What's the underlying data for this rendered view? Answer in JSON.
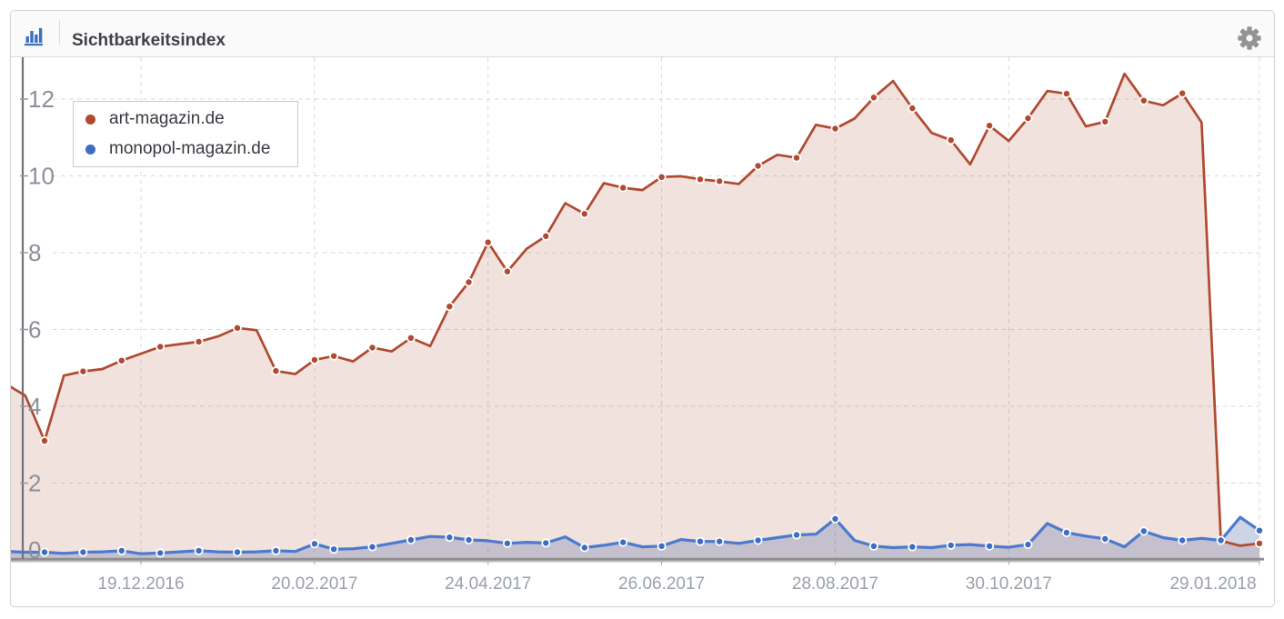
{
  "header": {
    "title": "Sichtbarkeitsindex",
    "chart_icon": "bar-chart-icon",
    "settings_icon": "gear-icon"
  },
  "legend": {
    "items": [
      {
        "label": "art-magazin.de",
        "color": "#b04a30"
      },
      {
        "label": "monopol-magazin.de",
        "color": "#3f6dc2"
      }
    ]
  },
  "chart_data": {
    "type": "line",
    "title": "Sichtbarkeitsindex",
    "ylim": [
      0,
      13.1
    ],
    "y_ticks": [
      0,
      2,
      4,
      6,
      8,
      10,
      12
    ],
    "grid": "dashed",
    "legend_position": "top-left",
    "x_tick_labels": [
      "19.12.2016",
      "20.02.2017",
      "24.04.2017",
      "26.06.2017",
      "28.08.2017",
      "30.10.2017",
      "29.01.2018"
    ],
    "x_tick_indices": [
      7,
      16,
      25,
      34,
      43,
      52,
      65
    ],
    "series": [
      {
        "name": "art-magazin.de",
        "color": "#b04a30",
        "fill": "rgba(176,74,48,0.16)",
        "values": [
          4.58,
          4.28,
          3.1,
          4.8,
          4.91,
          4.97,
          5.19,
          5.37,
          5.55,
          5.62,
          5.68,
          5.82,
          6.04,
          5.98,
          4.92,
          4.84,
          5.21,
          5.31,
          5.17,
          5.53,
          5.43,
          5.78,
          5.57,
          6.6,
          7.23,
          8.27,
          7.51,
          8.1,
          8.43,
          9.29,
          9.01,
          9.81,
          9.69,
          9.63,
          9.97,
          9.99,
          9.91,
          9.86,
          9.79,
          10.26,
          10.55,
          10.47,
          11.33,
          11.23,
          11.49,
          12.04,
          12.47,
          11.76,
          11.12,
          10.93,
          10.3,
          11.31,
          10.91,
          11.5,
          12.21,
          12.14,
          11.29,
          11.41,
          12.66,
          11.96,
          11.84,
          12.15,
          11.39,
          0.5,
          0.37,
          0.43
        ],
        "markers": [
          0,
          0,
          1,
          0,
          1,
          0,
          1,
          0,
          1,
          0,
          1,
          0,
          1,
          0,
          1,
          0,
          1,
          1,
          0,
          1,
          0,
          1,
          0,
          1,
          1,
          1,
          1,
          0,
          1,
          0,
          1,
          0,
          1,
          0,
          1,
          0,
          1,
          1,
          0,
          1,
          0,
          1,
          0,
          1,
          0,
          1,
          0,
          1,
          0,
          1,
          0,
          1,
          0,
          1,
          0,
          1,
          0,
          1,
          0,
          1,
          0,
          1,
          0,
          0,
          0,
          1
        ]
      },
      {
        "name": "monopol-magazin.de",
        "color": "#3f6dc2",
        "line_color": "#4c7ace",
        "fill": "rgba(90,113,168,0.30)",
        "values": [
          0.22,
          0.2,
          0.2,
          0.17,
          0.2,
          0.21,
          0.24,
          0.16,
          0.18,
          0.21,
          0.24,
          0.21,
          0.2,
          0.21,
          0.24,
          0.22,
          0.42,
          0.28,
          0.29,
          0.34,
          0.43,
          0.52,
          0.61,
          0.59,
          0.52,
          0.5,
          0.43,
          0.46,
          0.44,
          0.6,
          0.32,
          0.38,
          0.46,
          0.34,
          0.36,
          0.53,
          0.48,
          0.48,
          0.43,
          0.51,
          0.58,
          0.65,
          0.67,
          1.07,
          0.51,
          0.36,
          0.32,
          0.34,
          0.32,
          0.38,
          0.4,
          0.36,
          0.33,
          0.4,
          0.95,
          0.71,
          0.62,
          0.55,
          0.34,
          0.75,
          0.58,
          0.51,
          0.56,
          0.51,
          1.11,
          0.765
        ],
        "markers": [
          0,
          0,
          1,
          0,
          1,
          0,
          1,
          0,
          1,
          0,
          1,
          0,
          1,
          0,
          1,
          0,
          1,
          1,
          0,
          1,
          0,
          1,
          0,
          1,
          1,
          0,
          1,
          0,
          1,
          0,
          1,
          0,
          1,
          0,
          1,
          0,
          1,
          1,
          0,
          1,
          0,
          1,
          0,
          1,
          0,
          1,
          0,
          1,
          0,
          1,
          0,
          1,
          0,
          1,
          0,
          1,
          0,
          1,
          0,
          1,
          0,
          1,
          0,
          1,
          0,
          1
        ]
      }
    ]
  }
}
